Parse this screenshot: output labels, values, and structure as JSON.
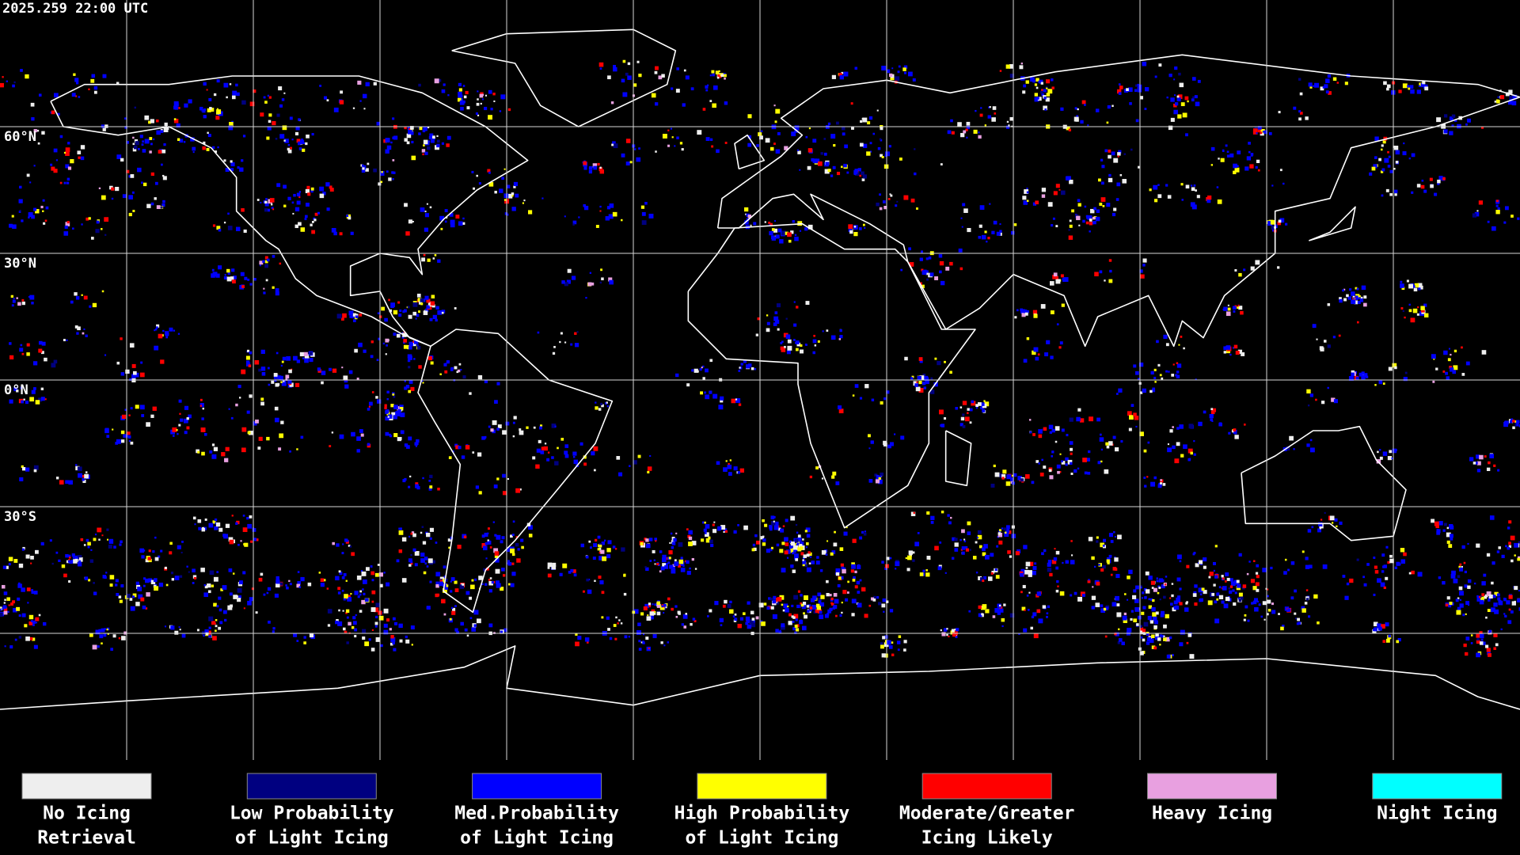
{
  "timestamp": "2025.259 22:00 UTC",
  "latitude_labels": [
    "60°N",
    "30°N",
    "0°N",
    "30°S"
  ],
  "legend": [
    {
      "label": [
        "No Icing",
        "Retrieval"
      ],
      "color": "#eeeeee"
    },
    {
      "label": [
        "Low Probability",
        "of Light Icing"
      ],
      "color": "#000080"
    },
    {
      "label": [
        "Med.Probability",
        "of Light Icing"
      ],
      "color": "#0000ff"
    },
    {
      "label": [
        "High Probability",
        "of Light Icing"
      ],
      "color": "#ffff00"
    },
    {
      "label": [
        "Moderate/Greater",
        "Icing Likely"
      ],
      "color": "#ff0000"
    },
    {
      "label": [
        "Heavy Icing"
      ],
      "color": "#e8a0e0"
    },
    {
      "label": [
        "Night Icing"
      ],
      "color": "#00ffff"
    }
  ]
}
